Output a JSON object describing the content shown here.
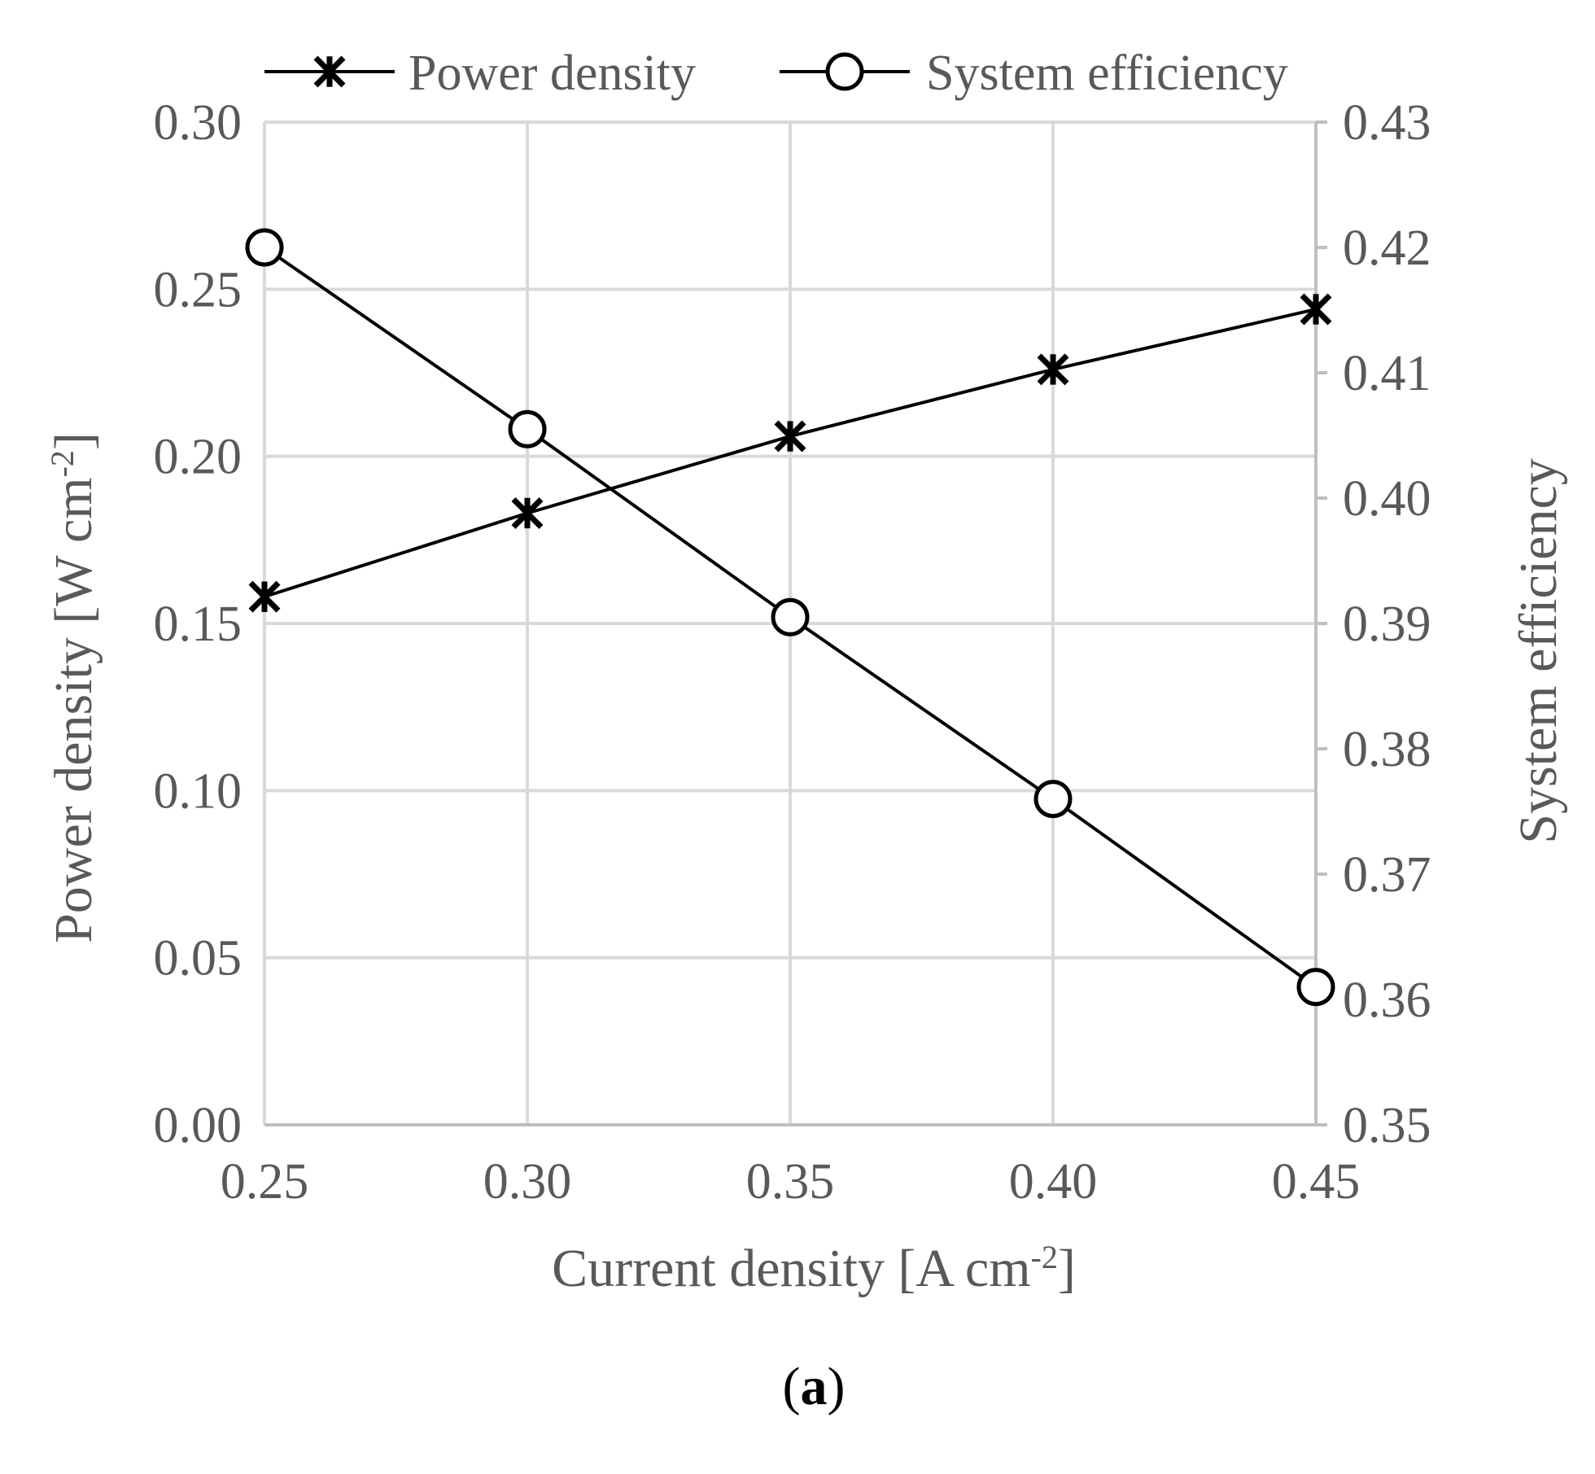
{
  "chart_data": {
    "type": "line",
    "x": [
      0.25,
      0.3,
      0.35,
      0.4,
      0.45
    ],
    "x_tick_labels": [
      "0.25",
      "0.30",
      "0.35",
      "0.40",
      "0.45"
    ],
    "xlabel": "Current density  [A cm",
    "xlabel_sup": "-2",
    "xlabel_end": "]",
    "xlim": [
      0.25,
      0.45
    ],
    "y_left": {
      "label": "Power density [W cm",
      "label_sup": "-2",
      "label_end": "]",
      "lim": [
        0.0,
        0.3
      ],
      "ticks": [
        0.0,
        0.05,
        0.1,
        0.15,
        0.2,
        0.25,
        0.3
      ],
      "tick_labels": [
        "0.00",
        "0.05",
        "0.10",
        "0.15",
        "0.20",
        "0.25",
        "0.30"
      ]
    },
    "y_right": {
      "label": "System efficiency",
      "lim": [
        0.35,
        0.43
      ],
      "ticks": [
        0.35,
        0.36,
        0.37,
        0.38,
        0.39,
        0.4,
        0.41,
        0.42,
        0.43
      ],
      "tick_labels": [
        "0.35",
        "0.36",
        "0.37",
        "0.38",
        "0.39",
        "0.40",
        "0.41",
        "0.42",
        "0.43"
      ]
    },
    "series": [
      {
        "name": "Power density",
        "axis": "left",
        "marker": "asterisk",
        "values": [
          0.158,
          0.183,
          0.206,
          0.226,
          0.244
        ]
      },
      {
        "name": "System efficiency",
        "axis": "right",
        "marker": "circle",
        "values": [
          0.42,
          0.4055,
          0.3905,
          0.376,
          0.361
        ]
      }
    ],
    "grid": true,
    "legend_position": "top",
    "colors": {
      "line": "#000000",
      "grid": "#d9d9d9",
      "text": "#595959"
    }
  },
  "caption": {
    "open": "(",
    "letter": "a",
    "close": ")"
  }
}
